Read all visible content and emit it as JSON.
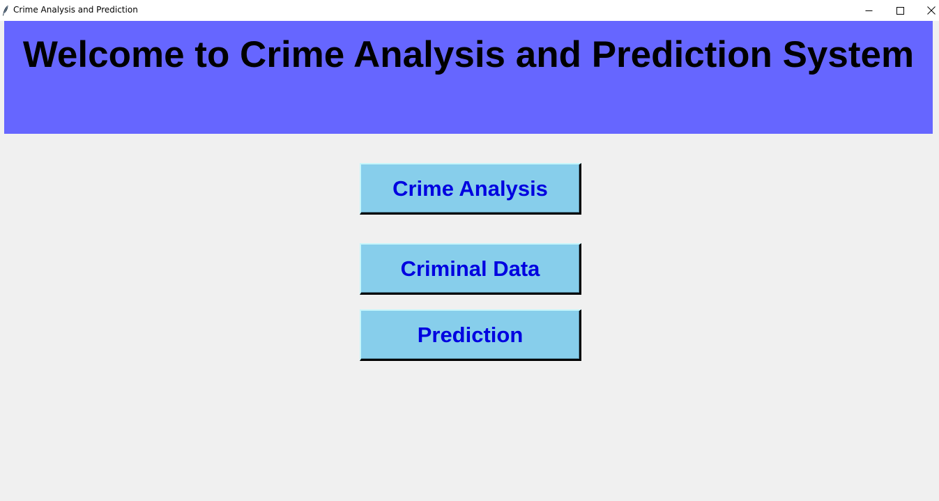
{
  "window": {
    "title": "Crime Analysis and Prediction",
    "icon": "feather-icon",
    "controls": [
      "minimize-icon",
      "maximize-icon",
      "close-icon"
    ]
  },
  "banner": {
    "title": "Welcome to Crime Analysis and Prediction System",
    "background_color": "#6666ff"
  },
  "buttons": {
    "crime_analysis": "Crime Analysis",
    "criminal_data": "Criminal Data",
    "prediction": "Prediction",
    "background_color": "#87ceeb",
    "text_color": "#0000e0"
  }
}
